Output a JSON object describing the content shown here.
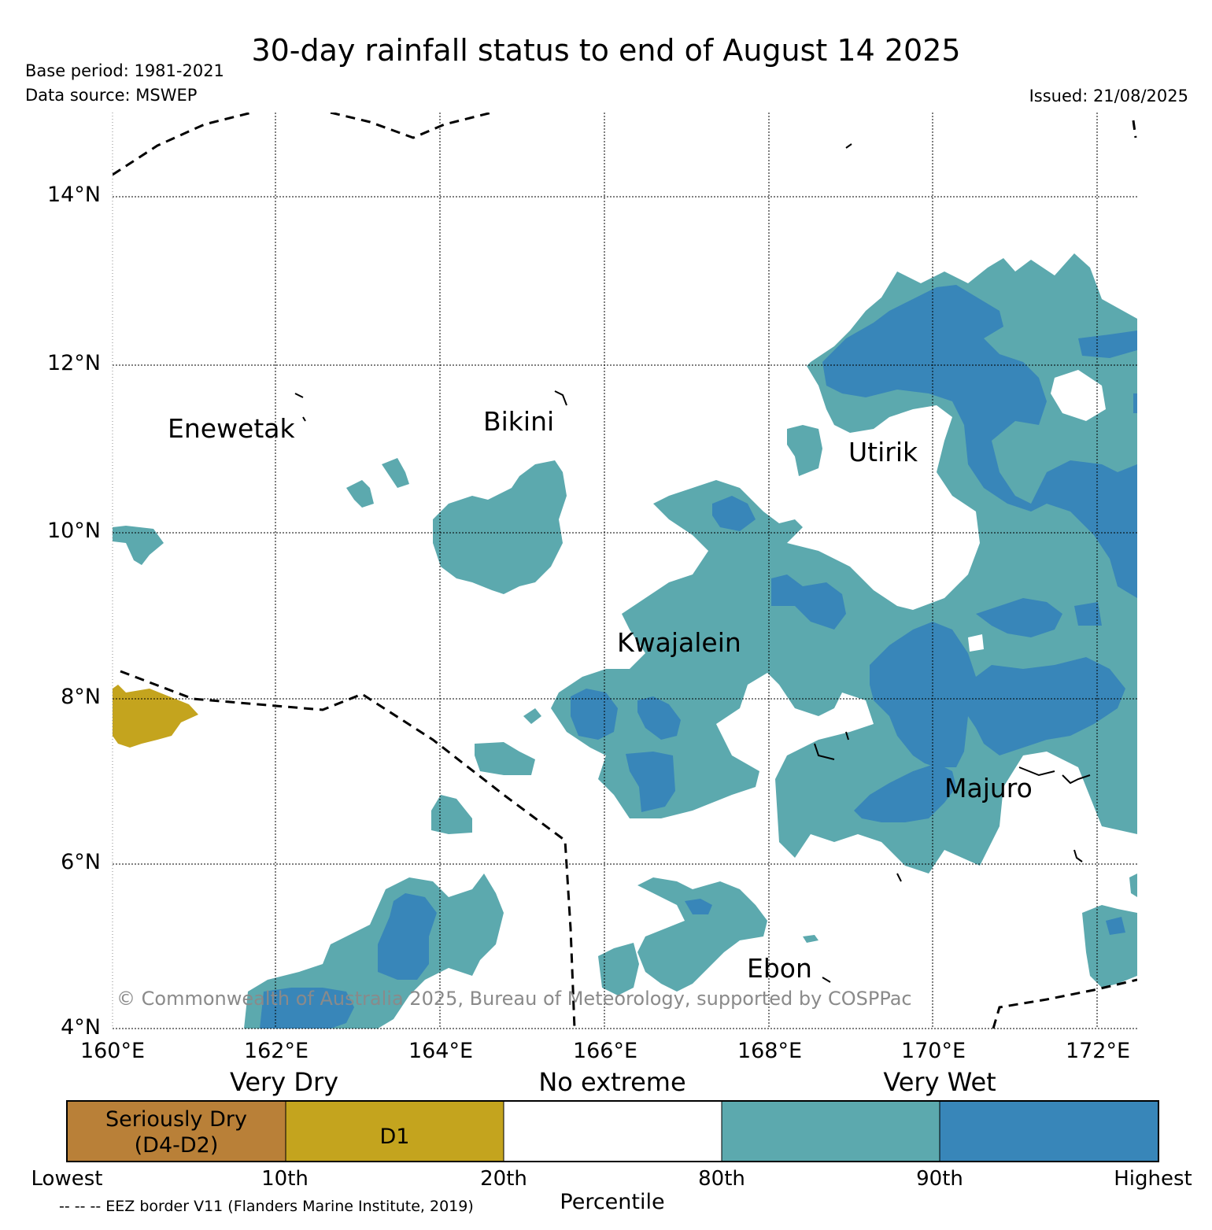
{
  "header": {
    "title": "30-day rainfall status to end of August 14 2025",
    "base_period": "Base period: 1981-2021",
    "data_source": "Data source: MSWEP",
    "issued": "Issued: 21/08/2025"
  },
  "map": {
    "lat_ticks": [
      "14°N",
      "12°N",
      "10°N",
      "8°N",
      "6°N",
      "4°N"
    ],
    "lon_ticks": [
      "160°E",
      "162°E",
      "164°E",
      "166°E",
      "168°E",
      "170°E",
      "172°E"
    ],
    "places": {
      "enewetak": "Enewetak",
      "bikini": "Bikini",
      "utirik": "Utirik",
      "kwajalein": "Kwajalein",
      "majuro": "Majuro",
      "ebon": "Ebon"
    },
    "copyright": "© Commonwealth of Australia 2025, Bureau of Meteorology, supported by COSPPac",
    "colors": {
      "seriously_dry": "#b98038",
      "d1": "#c4a41e",
      "no_extreme": "#ffffff",
      "very_wet_80": "#5ca9ae",
      "very_wet_90": "#3886b9",
      "eez_border": "#000000"
    }
  },
  "legend": {
    "categories": [
      "Very Dry",
      "No extreme",
      "Very Wet"
    ],
    "boxes": {
      "seriously_dry_line1": "Seriously Dry",
      "seriously_dry_line2": "(D4-D2)",
      "d1": "D1"
    },
    "percentiles": [
      "Lowest",
      "10th",
      "20th",
      "80th",
      "90th",
      "Highest"
    ],
    "percentile_title": "Percentile",
    "eez_note": "-- -- -- EEZ border V11 (Flanders Marine Institute, 2019)"
  }
}
